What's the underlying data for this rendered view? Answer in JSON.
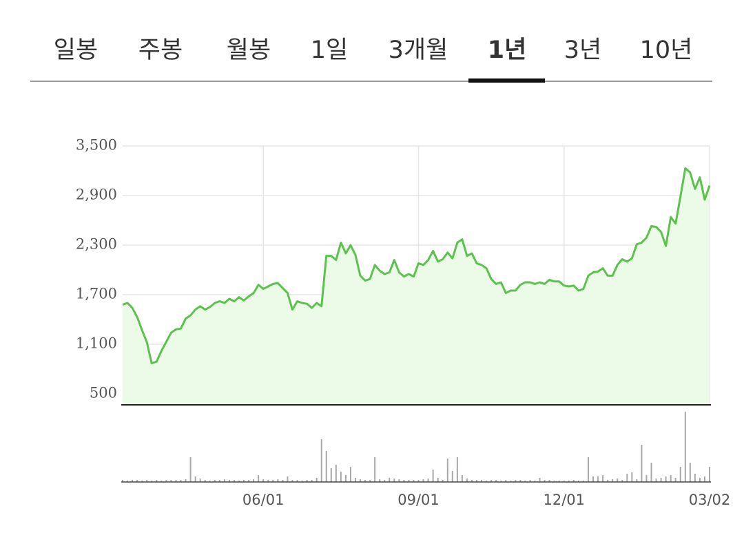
{
  "tabs": [
    "일봉",
    "주봉",
    "월봉",
    "1일",
    "3개월",
    "1년",
    "3년",
    "10년"
  ],
  "active_tab": 5,
  "chart_data": [
    {
      "type": "line",
      "categories": [
        null,
        null,
        null,
        null,
        null,
        null,
        null,
        null,
        null,
        null,
        null,
        null,
        null,
        null,
        null,
        null,
        null,
        null,
        null,
        null,
        null,
        null,
        null,
        null,
        null,
        null,
        null,
        null,
        null,
        "06/01",
        null,
        null,
        null,
        null,
        null,
        null,
        null,
        null,
        null,
        null,
        null,
        null,
        null,
        null,
        null,
        null,
        null,
        null,
        null,
        null,
        null,
        null,
        null,
        null,
        null,
        null,
        null,
        null,
        null,
        null,
        null,
        "09/01",
        null,
        null,
        null,
        null,
        null,
        null,
        null,
        null,
        null,
        null,
        null,
        null,
        null,
        null,
        null,
        null,
        null,
        null,
        null,
        null,
        null,
        null,
        null,
        null,
        null,
        null,
        null,
        null,
        null,
        "12/01",
        null,
        null,
        null,
        null,
        null,
        null,
        null,
        null,
        null,
        null,
        null,
        null,
        null,
        null,
        null,
        null,
        null,
        null,
        null,
        null,
        null,
        null,
        null,
        null,
        null,
        null,
        null,
        null,
        null,
        "03/02"
      ],
      "series": [
        {
          "color": "#5cc24e",
          "fill": "#ebfbe8",
          "values": [
            1580,
            1600,
            1540,
            1430,
            1270,
            1125,
            870,
            890,
            1020,
            1130,
            1240,
            1280,
            1290,
            1410,
            1450,
            1520,
            1560,
            1520,
            1550,
            1600,
            1620,
            1600,
            1650,
            1620,
            1670,
            1630,
            1680,
            1720,
            1820,
            1770,
            1800,
            1830,
            1840,
            1780,
            1720,
            1520,
            1620,
            1600,
            1590,
            1540,
            1600,
            1560,
            2170,
            2170,
            2120,
            2330,
            2200,
            2300,
            2180,
            1930,
            1870,
            1890,
            2060,
            1990,
            1950,
            1970,
            2120,
            1970,
            1920,
            1950,
            1920,
            2080,
            2060,
            2120,
            2230,
            2100,
            2130,
            2210,
            2140,
            2330,
            2370,
            2170,
            2200,
            2080,
            2060,
            2020,
            1890,
            1830,
            1850,
            1720,
            1750,
            1750,
            1820,
            1850,
            1850,
            1830,
            1850,
            1830,
            1880,
            1860,
            1860,
            1810,
            1800,
            1810,
            1750,
            1770,
            1930,
            1970,
            1980,
            2020,
            1930,
            1930,
            2060,
            2130,
            2100,
            2140,
            2310,
            2330,
            2390,
            2530,
            2520,
            2460,
            2290,
            2640,
            2560,
            2890,
            3230,
            3180,
            2980,
            3120,
            2850,
            3020
          ]
        }
      ],
      "ylim": [
        367,
        3500
      ],
      "yticks": [
        {
          "value": 3500,
          "label": "3,500"
        },
        {
          "value": 2900,
          "label": "2,900"
        },
        {
          "value": 2300,
          "label": "2,300"
        },
        {
          "value": 1700,
          "label": "1,700"
        },
        {
          "value": 1100,
          "label": "1,100"
        },
        500
      ],
      "grid": true
    },
    {
      "type": "bar",
      "color": "#a8a8a8",
      "values": [
        3,
        2,
        3,
        3,
        2,
        3,
        2,
        3,
        2,
        3,
        3,
        3,
        3,
        4,
        36,
        8,
        5,
        3,
        2,
        3,
        3,
        4,
        3,
        3,
        2,
        3,
        3,
        4,
        10,
        4,
        3,
        3,
        4,
        3,
        8,
        3,
        3,
        2,
        3,
        3,
        6,
        62,
        45,
        20,
        25,
        15,
        10,
        22,
        6,
        4,
        3,
        3,
        36,
        4,
        3,
        6,
        5,
        4,
        3,
        3,
        3,
        3,
        4,
        5,
        18,
        6,
        3,
        34,
        16,
        36,
        10,
        5,
        3,
        3,
        3,
        2,
        3,
        3,
        2,
        3,
        2,
        3,
        3,
        2,
        3,
        2,
        6,
        3,
        3,
        2,
        2,
        2,
        2,
        3,
        2,
        2,
        36,
        8,
        8,
        10,
        3,
        4,
        5,
        3,
        12,
        14,
        4,
        54,
        10,
        28,
        5,
        6,
        8,
        10,
        6,
        22,
        102,
        28,
        12,
        6,
        8,
        22
      ],
      "ylim": [
        0,
        110
      ]
    }
  ]
}
